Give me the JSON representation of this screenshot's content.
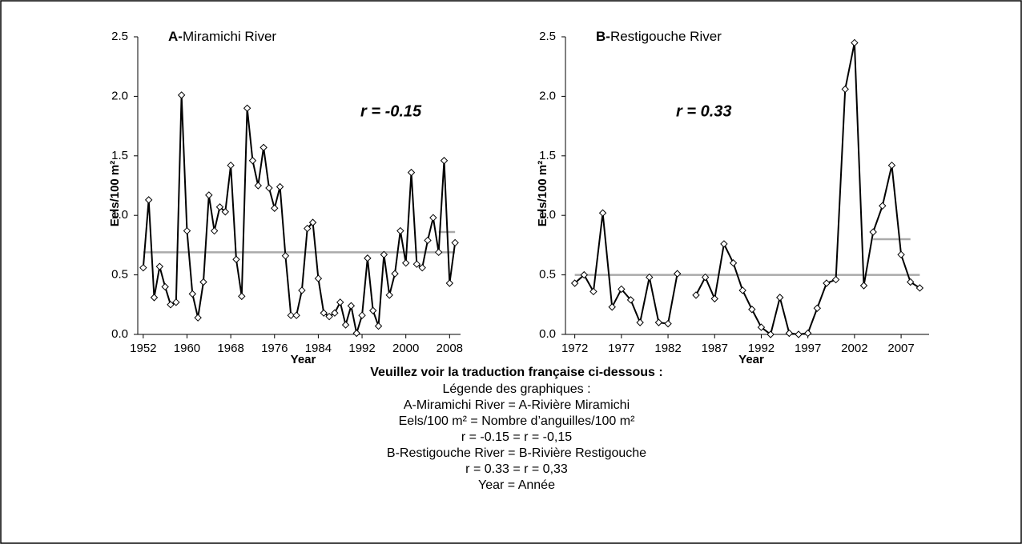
{
  "chart_data": [
    {
      "type": "line",
      "panel": "A-",
      "title": "Miramichi River",
      "annotation": "r = -0.15",
      "xlabel": "Year",
      "ylabel": "Eels/100 m²",
      "x": [
        1952,
        1953,
        1954,
        1955,
        1956,
        1957,
        1958,
        1959,
        1960,
        1961,
        1962,
        1963,
        1964,
        1965,
        1966,
        1967,
        1968,
        1969,
        1970,
        1971,
        1972,
        1973,
        1974,
        1975,
        1976,
        1977,
        1978,
        1979,
        1980,
        1981,
        1982,
        1983,
        1984,
        1985,
        1986,
        1987,
        1988,
        1989,
        1990,
        1991,
        1992,
        1993,
        1994,
        1995,
        1996,
        1997,
        1998,
        1999,
        2000,
        2001,
        2002,
        2003,
        2004,
        2005,
        2006,
        2007,
        2008,
        2009
      ],
      "series": [
        {
          "color": "#000000",
          "values": [
            0.56,
            1.13,
            0.31,
            0.57,
            0.4,
            0.25,
            0.27,
            2.01,
            0.87,
            0.34,
            0.14,
            0.44,
            1.17,
            0.87,
            1.07,
            1.03,
            1.42,
            0.63,
            0.32,
            1.9,
            1.46,
            1.25,
            1.57,
            1.23,
            1.06,
            1.24,
            0.66,
            0.16,
            0.16,
            0.37,
            0.89,
            0.94,
            0.47,
            0.18,
            0.15,
            0.18,
            0.27,
            0.08,
            0.24,
            0.01,
            0.16,
            0.64,
            0.2,
            0.07,
            0.67,
            0.33,
            0.51,
            0.87,
            0.6,
            1.36,
            0.59,
            0.56,
            0.79,
            0.98,
            0.69,
            1.46,
            0.43,
            0.77
          ]
        }
      ],
      "reference_lines": [
        {
          "value": 0.69,
          "x": [
            1952,
            2009
          ],
          "color": "#aaaaaa"
        },
        {
          "value": 0.86,
          "x": [
            2006,
            2009
          ],
          "color": "#aaaaaa"
        }
      ],
      "xlim": [
        1951,
        2010
      ],
      "xticks": [
        1952,
        1960,
        1968,
        1976,
        1984,
        1992,
        2000,
        2008
      ],
      "ylim": [
        0,
        2.5
      ],
      "yticks": [
        {
          "value": 0,
          "label": "0.0"
        },
        0.5,
        {
          "value": 1,
          "label": "1.0"
        },
        1.5,
        {
          "value": 2,
          "label": "2.0"
        },
        2.5
      ]
    },
    {
      "type": "line",
      "panel": "B-",
      "title": "Restigouche River",
      "annotation": "r = 0.33",
      "xlabel": "Year",
      "ylabel": "Eels/100 m²",
      "x": [
        1972,
        1973,
        1974,
        1975,
        1976,
        1977,
        1978,
        1979,
        1980,
        1981,
        1982,
        1983,
        1984,
        1985,
        1986,
        1987,
        1988,
        1989,
        1990,
        1991,
        1992,
        1993,
        1994,
        1995,
        1996,
        1997,
        1998,
        1999,
        2000,
        2001,
        2002,
        2003,
        2004,
        2005,
        2006,
        2007,
        2008,
        2009
      ],
      "series": [
        {
          "color": "#000000",
          "values": [
            0.43,
            0.5,
            0.36,
            1.02,
            0.23,
            0.38,
            0.29,
            0.1,
            0.48,
            0.1,
            0.09,
            0.51,
            null,
            0.33,
            0.48,
            0.3,
            0.76,
            0.6,
            0.37,
            0.21,
            0.06,
            0.0,
            0.31,
            0.01,
            0.0,
            0.01,
            0.22,
            0.43,
            0.46,
            2.06,
            2.45,
            0.41,
            0.86,
            1.08,
            1.42,
            0.67,
            0.44,
            0.39
          ]
        }
      ],
      "reference_lines": [
        {
          "value": 0.5,
          "x": [
            1972,
            2009
          ],
          "color": "#aaaaaa"
        },
        {
          "value": 0.8,
          "x": [
            2004,
            2008
          ],
          "color": "#aaaaaa"
        }
      ],
      "xlim": [
        1971,
        2010
      ],
      "xticks": [
        1972,
        1977,
        1982,
        1987,
        1992,
        1997,
        2002,
        2007
      ],
      "ylim": [
        0,
        2.5
      ],
      "yticks": [
        {
          "value": 0,
          "label": "0.0"
        },
        0.5,
        {
          "value": 1,
          "label": "1.0"
        },
        1.5,
        {
          "value": 2,
          "label": "2.0"
        },
        2.5
      ]
    }
  ],
  "translation": {
    "heading": "Veuillez voir la traduction française ci-dessous :",
    "lines": [
      "Légende des graphiques :",
      "A-Miramichi River = A-Rivière Miramichi",
      "Eels/100 m² = Nombre d’anguilles/100 m²",
      "r = -0.15 = r = -0,15",
      "B-Restigouche River = B-Rivière Restigouche",
      "r = 0.33 = r = 0,33",
      "Year = Année"
    ]
  }
}
